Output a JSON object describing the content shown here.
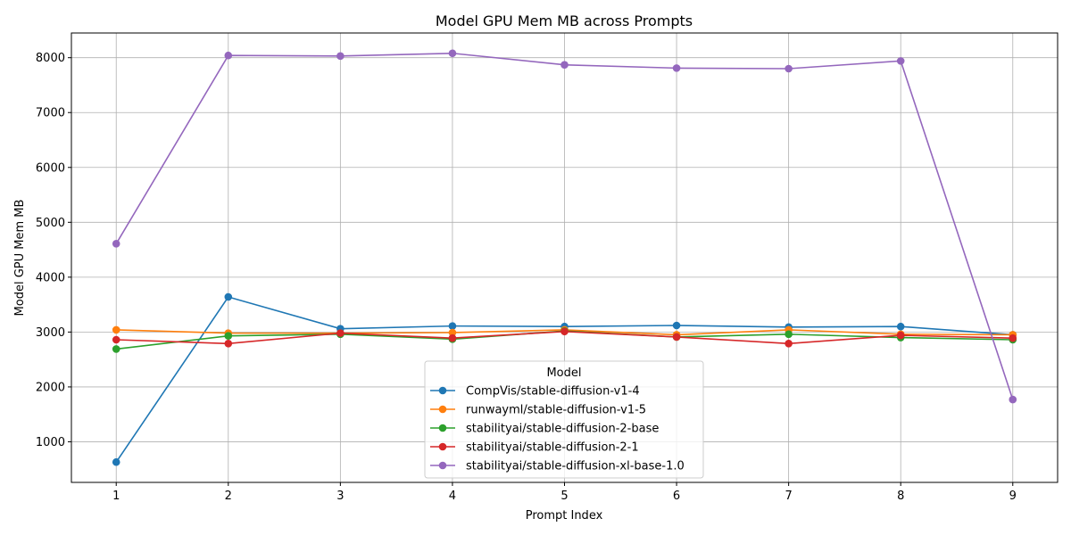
{
  "chart_data": {
    "type": "line",
    "title": "Model GPU Mem MB across Prompts",
    "xlabel": "Prompt Index",
    "ylabel": "Model GPU Mem MB",
    "x": [
      1,
      2,
      3,
      4,
      5,
      6,
      7,
      8,
      9
    ],
    "xlim": [
      0.6,
      9.4
    ],
    "ylim": [
      260,
      8450
    ],
    "yticks": [
      1000,
      2000,
      3000,
      4000,
      5000,
      6000,
      7000,
      8000
    ],
    "grid": true,
    "legend": {
      "title": "Model",
      "placement": "lower-center"
    },
    "series": [
      {
        "name": "CompVis/stable-diffusion-v1-4",
        "color": "#1f77b4",
        "values": [
          630,
          3640,
          3060,
          3110,
          3100,
          3120,
          3090,
          3100,
          2950
        ]
      },
      {
        "name": "runwayml/stable-diffusion-v1-5",
        "color": "#ff7f0e",
        "values": [
          3040,
          2980,
          2980,
          2990,
          3040,
          2950,
          3040,
          2960,
          2950
        ]
      },
      {
        "name": "stabilityai/stable-diffusion-2-base",
        "color": "#2ca02c",
        "values": [
          2690,
          2930,
          2960,
          2870,
          3020,
          2910,
          2960,
          2900,
          2860
        ]
      },
      {
        "name": "stabilityai/stable-diffusion-2-1",
        "color": "#d62728",
        "values": [
          2860,
          2790,
          2980,
          2890,
          3010,
          2910,
          2790,
          2940,
          2890
        ]
      },
      {
        "name": "stabilityai/stable-diffusion-xl-base-1.0",
        "color": "#9467bd",
        "values": [
          4610,
          8040,
          8030,
          8080,
          7870,
          7810,
          7800,
          7940,
          1770
        ]
      }
    ]
  }
}
